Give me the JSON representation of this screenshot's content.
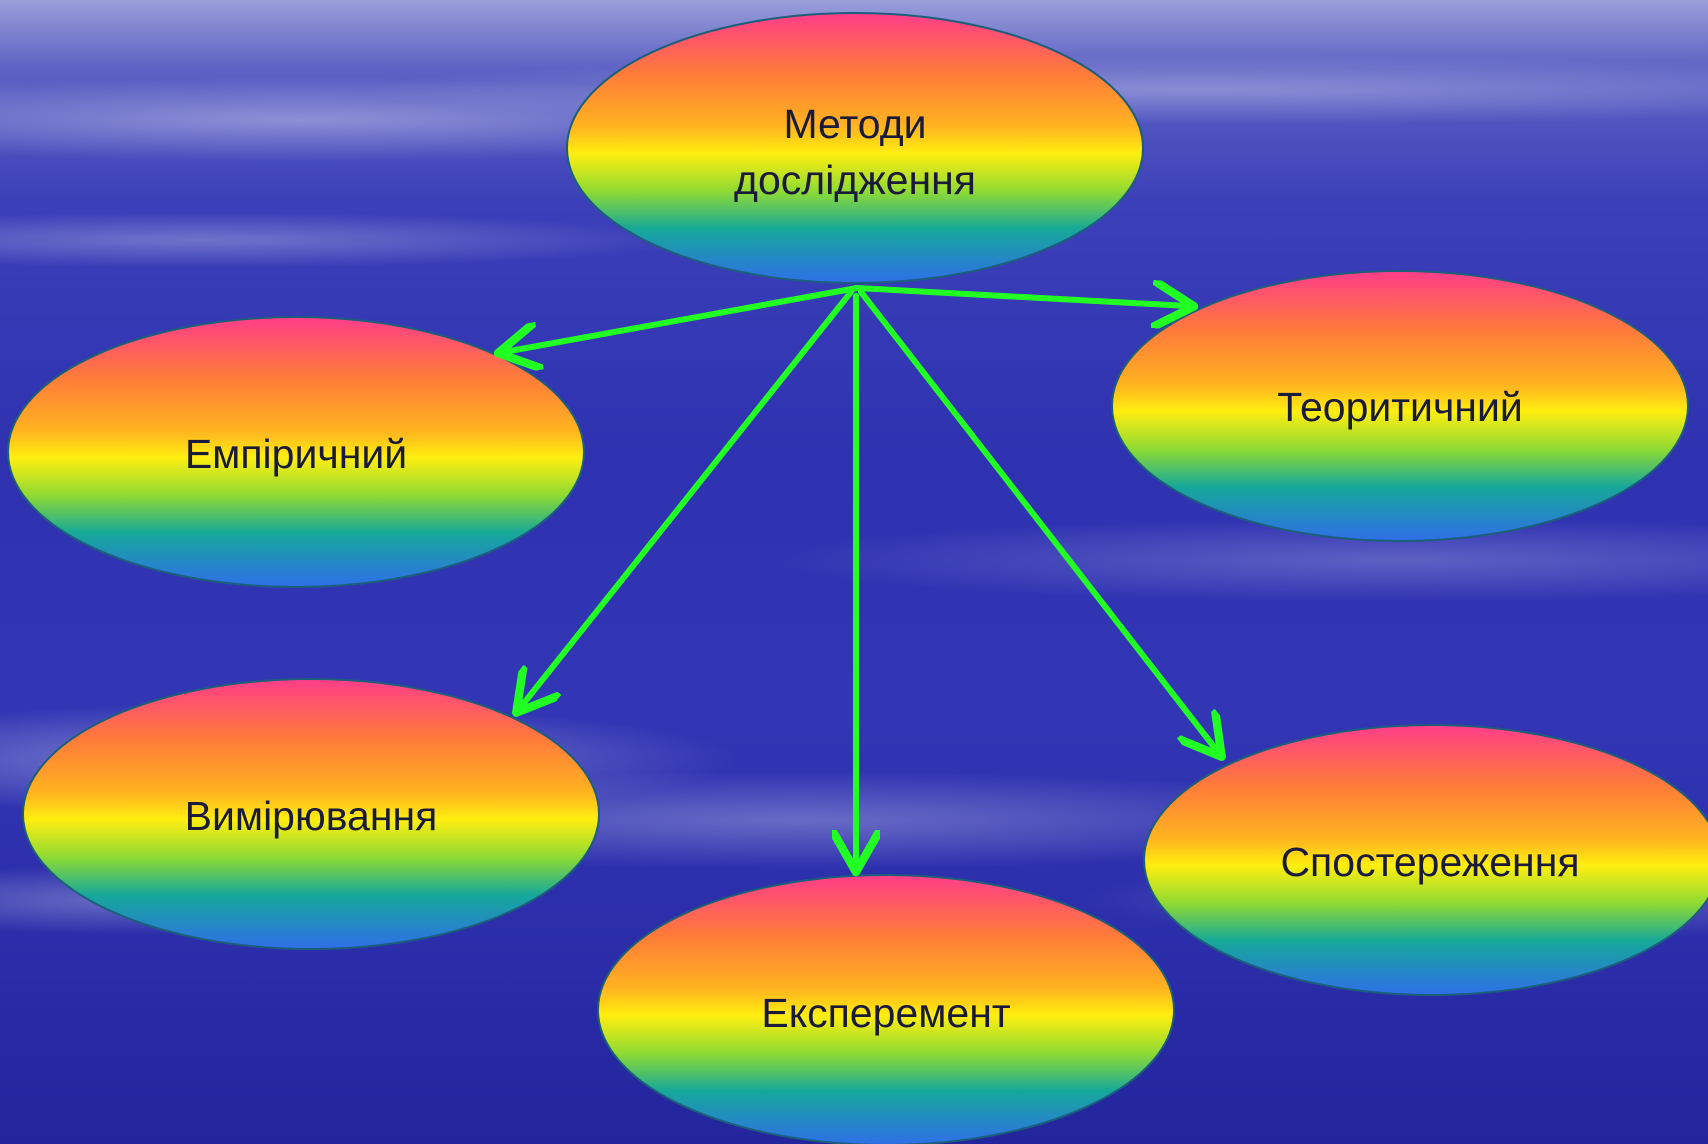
{
  "diagram": {
    "root": {
      "line1": "Методи",
      "line2": "дослідження"
    },
    "nodes": {
      "empirical": "Емпіричний",
      "theoretical": "Теоритичний",
      "measurement": "Вимірювання",
      "experiment": "Експеремент",
      "observation": "Спостереження"
    },
    "colors": {
      "arrow": "#22ff22",
      "ellipse_outline": "#1b5f7a",
      "gradient": [
        "#ff3d8a",
        "#ff7a3a",
        "#ffee10",
        "#6fd23a",
        "#16a89a",
        "#2f6fe8"
      ]
    }
  }
}
